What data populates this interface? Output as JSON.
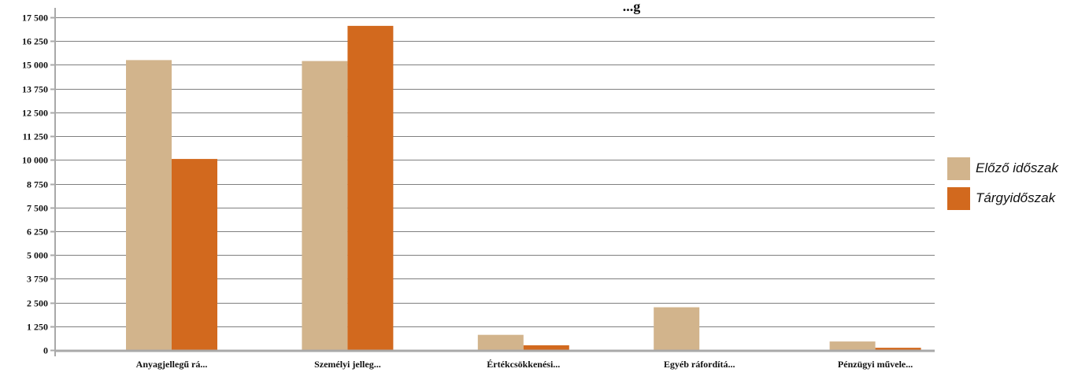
{
  "chart_data": {
    "type": "bar",
    "title": "...g",
    "categories": [
      "Anyagjellegű rá...",
      "Személyi jelleg...",
      "Értékcsökkenési...",
      "Egyéb ráfordítá...",
      "Pénzügyi művele..."
    ],
    "series": [
      {
        "name": "Előző időszak",
        "color": "#D2B48C",
        "values": [
          15250,
          15200,
          800,
          2250,
          450
        ]
      },
      {
        "name": "Tárgyidőszak",
        "color": "#D2691E",
        "values": [
          10050,
          17050,
          250,
          0,
          120
        ]
      }
    ],
    "ylim": [
      0,
      17500
    ],
    "ytick_values": [
      0,
      1250,
      2500,
      3750,
      5000,
      6250,
      7500,
      8750,
      10000,
      11250,
      12500,
      13750,
      15000,
      16250,
      17500
    ],
    "ytick_labels": [
      "0",
      "1 250",
      "2 500",
      "3 750",
      "5 000",
      "6 250",
      "7 500",
      "8 750",
      "10 000",
      "11 250",
      "12 500",
      "13 750",
      "15 000",
      "16 250",
      "17 500"
    ],
    "grid": true,
    "legend_position": "right",
    "axis_color": "#A9A9A9",
    "grid_color": "#7F7F7F"
  }
}
